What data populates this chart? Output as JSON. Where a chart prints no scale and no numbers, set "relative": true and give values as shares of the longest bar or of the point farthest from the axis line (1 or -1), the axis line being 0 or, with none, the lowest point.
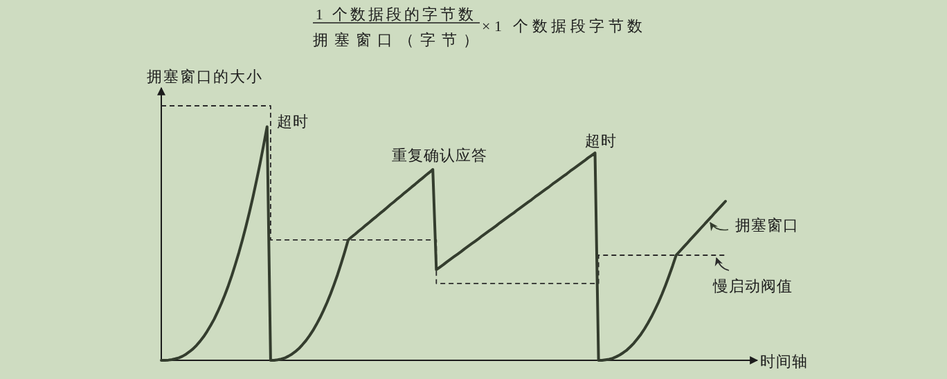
{
  "chart_data": {
    "type": "line",
    "relative": true,
    "title": "1 个数据段的字节数/拥塞窗口（字节）×1 个数据段字节数",
    "ylabel": "拥塞窗口的大小",
    "xlabel": "时间轴",
    "categories": [
      null,
      null,
      null,
      null,
      null,
      null,
      null,
      null,
      null,
      null,
      null,
      null,
      null,
      null,
      null,
      null,
      null,
      null,
      null,
      null,
      null,
      null,
      null,
      null,
      null,
      null,
      null,
      null,
      null,
      null,
      null,
      null,
      null,
      null,
      null,
      null,
      null,
      null,
      null,
      null,
      null,
      null,
      null,
      null,
      null,
      null,
      null,
      null,
      null,
      null,
      null,
      null,
      null,
      null,
      null,
      null,
      null,
      null,
      null,
      null,
      null,
      null,
      null,
      null,
      null,
      null,
      null,
      null,
      null,
      null,
      null,
      null,
      null,
      null,
      null,
      null,
      null,
      null,
      null,
      null,
      null,
      null,
      null,
      null,
      null,
      null,
      null,
      null,
      null,
      null,
      null,
      null,
      null,
      null,
      null,
      null,
      null,
      null,
      null,
      null,
      null,
      null,
      null,
      null,
      null,
      null,
      null,
      null,
      null,
      null,
      null,
      null,
      null,
      null,
      null,
      null,
      null,
      null,
      null,
      null,
      null,
      null,
      null,
      null,
      null,
      null,
      null,
      null,
      null,
      null,
      null,
      null,
      null,
      null,
      null,
      null,
      null,
      null,
      null,
      null,
      null,
      null,
      null,
      null,
      null,
      null,
      null,
      null,
      null,
      null,
      null,
      null,
      null,
      null,
      null,
      null,
      null,
      null,
      null,
      null,
      null
    ],
    "series": [
      {
        "name": "拥塞窗口",
        "color": "#343d2e",
        "line_style": "solid",
        "values": [
          0,
          0,
          0.001,
          0.003,
          0.006,
          0.01,
          0.016,
          0.024,
          0.034,
          0.045,
          0.059,
          0.075,
          0.093,
          0.114,
          0.137,
          0.162,
          0.191,
          0.222,
          0.256,
          0.293,
          0.333,
          0.377,
          0.423,
          0.473,
          0.526,
          0.582,
          0.642,
          0.706,
          0.773,
          0.844,
          0.918,
          0,
          0,
          0.002,
          0.005,
          0.009,
          0.016,
          0.024,
          0.034,
          0.046,
          0.061,
          0.077,
          0.096,
          0.117,
          0.141,
          0.167,
          0.196,
          0.227,
          0.261,
          0.298,
          0.337,
          0.38,
          0.425,
          0.473,
          0.485,
          0.496,
          0.508,
          0.519,
          0.531,
          0.542,
          0.554,
          0.565,
          0.577,
          0.588,
          0.6,
          0.612,
          0.623,
          0.635,
          0.646,
          0.658,
          0.669,
          0.681,
          0.692,
          0.704,
          0.715,
          0.727,
          0.738,
          0.75,
          0.356,
          0.366,
          0.376,
          0.387,
          0.397,
          0.407,
          0.417,
          0.427,
          0.438,
          0.448,
          0.458,
          0.468,
          0.478,
          0.489,
          0.499,
          0.509,
          0.519,
          0.529,
          0.54,
          0.55,
          0.56,
          0.57,
          0.58,
          0.591,
          0.601,
          0.611,
          0.621,
          0.631,
          0.642,
          0.652,
          0.662,
          0.672,
          0.682,
          0.693,
          0.703,
          0.713,
          0.723,
          0.733,
          0.744,
          0.754,
          0.764,
          0.774,
          0.784,
          0.795,
          0.805,
          0.815,
          0,
          0,
          0.002,
          0.004,
          0.008,
          0.014,
          0.021,
          0.03,
          0.04,
          0.053,
          0.067,
          0.084,
          0.102,
          0.123,
          0.146,
          0.171,
          0.199,
          0.228,
          0.26,
          0.295,
          0.332,
          0.371,
          0.413,
          0.428,
          0.443,
          0.458,
          0.474,
          0.489,
          0.504,
          0.519,
          0.534,
          0.549,
          0.564,
          0.58,
          0.595,
          0.61,
          0.625
        ]
      },
      {
        "name": "慢启动阀值",
        "type": "step",
        "color": "#2b2b2b",
        "line_style": "dashed",
        "values": [
          1,
          1,
          1,
          1,
          1,
          1,
          1,
          1,
          1,
          1,
          1,
          1,
          1,
          1,
          1,
          1,
          1,
          1,
          1,
          1,
          1,
          1,
          1,
          1,
          1,
          1,
          1,
          1,
          1,
          1,
          1,
          0.473,
          0.473,
          0.473,
          0.473,
          0.473,
          0.473,
          0.473,
          0.473,
          0.473,
          0.473,
          0.473,
          0.473,
          0.473,
          0.473,
          0.473,
          0.473,
          0.473,
          0.473,
          0.473,
          0.473,
          0.473,
          0.473,
          0.473,
          0.473,
          0.473,
          0.473,
          0.473,
          0.473,
          0.473,
          0.473,
          0.473,
          0.473,
          0.473,
          0.473,
          0.473,
          0.473,
          0.473,
          0.473,
          0.473,
          0.473,
          0.473,
          0.473,
          0.473,
          0.473,
          0.473,
          0.473,
          0.473,
          0.302,
          0.302,
          0.302,
          0.302,
          0.302,
          0.302,
          0.302,
          0.302,
          0.302,
          0.302,
          0.302,
          0.302,
          0.302,
          0.302,
          0.302,
          0.302,
          0.302,
          0.302,
          0.302,
          0.302,
          0.302,
          0.302,
          0.302,
          0.302,
          0.302,
          0.302,
          0.302,
          0.302,
          0.302,
          0.302,
          0.302,
          0.302,
          0.302,
          0.302,
          0.302,
          0.302,
          0.302,
          0.302,
          0.302,
          0.302,
          0.302,
          0.302,
          0.302,
          0.302,
          0.302,
          0.302,
          0.413,
          0.413,
          0.413,
          0.413,
          0.413,
          0.413,
          0.413,
          0.413,
          0.413,
          0.413,
          0.413,
          0.413,
          0.413,
          0.413,
          0.413,
          0.413,
          0.413,
          0.413,
          0.413,
          0.413,
          0.413,
          0.413,
          0.413,
          0.413,
          0.413,
          0.413,
          0.413,
          0.413,
          0.413,
          0.413,
          0.413,
          0.413,
          0.413,
          0.413,
          0.413,
          0.413,
          0.413
        ]
      }
    ],
    "annotations": [
      "超时",
      "重复确认应答",
      "超时"
    ]
  }
}
